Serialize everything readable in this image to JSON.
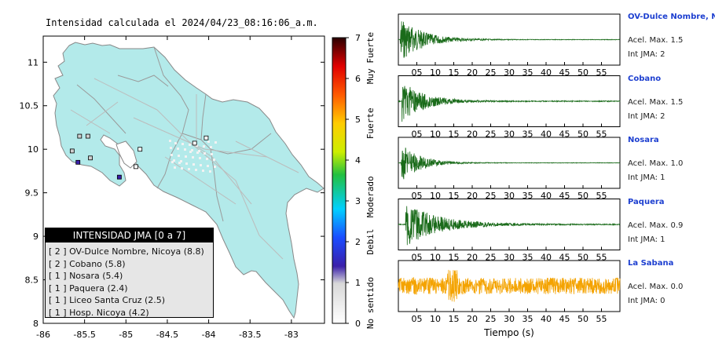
{
  "map": {
    "title": "Intensidad calculada el 2024/04/23_08:16:06_a.m.",
    "x_ticks": [
      "-86",
      "-85.5",
      "-85",
      "-84.5",
      "-84",
      "-83.5",
      "-83"
    ],
    "y_ticks": [
      "11",
      "10.5",
      "10",
      "9.5",
      "9",
      "8.5",
      "8"
    ],
    "land_color": "#b3eaea"
  },
  "colorbar": {
    "ticks": [
      "0",
      "1",
      "2",
      "3",
      "4",
      "5",
      "6",
      "7"
    ],
    "labels": [
      "No sentido",
      "Debil",
      "Moderado",
      "Fuerte",
      "Muy Fuerte"
    ]
  },
  "legend": {
    "title": "INTENSIDAD JMA [0 a 7]",
    "items": [
      {
        "level": "[ 2 ]",
        "name": "OV-Dulce Nombre, Nicoya (8.8)"
      },
      {
        "level": "[ 2 ]",
        "name": "Cobano (5.8)"
      },
      {
        "level": "[ 1 ]",
        "name": "Nosara (5.4)"
      },
      {
        "level": "[ 1 ]",
        "name": "Paquera (2.4)"
      },
      {
        "level": "[ 1 ]",
        "name": "Liceo Santa Cruz (2.5)"
      },
      {
        "level": "[ 1 ]",
        "name": "Hosp. Nicoya (4.2)"
      }
    ]
  },
  "chart_data": {
    "type": "line",
    "xlabel": "Tiempo (s)",
    "x_ticks": [
      "05",
      "10",
      "15",
      "20",
      "25",
      "30",
      "35",
      "40",
      "45",
      "50",
      "55"
    ],
    "xlim": [
      0,
      60
    ],
    "series": [
      {
        "name": "OV-Dulce Nombre, Nicoya",
        "accel": "Acel. Max. 1.5",
        "jma": "Int JMA: 2",
        "color": "#1a6b1a",
        "onset_s": 0.5,
        "peak_rel": 0.95,
        "decay_s": 6,
        "noise_rel": 0.01
      },
      {
        "name": "Cobano",
        "accel": "Acel. Max. 1.5",
        "jma": "Int JMA: 2",
        "color": "#1a6b1a",
        "onset_s": 1.0,
        "peak_rel": 0.85,
        "decay_s": 6,
        "noise_rel": 0.02
      },
      {
        "name": "Nosara",
        "accel": "Acel. Max. 1.0",
        "jma": "Int JMA: 1",
        "color": "#1a6b1a",
        "onset_s": 0.8,
        "peak_rel": 0.8,
        "decay_s": 5,
        "noise_rel": 0.01
      },
      {
        "name": "Paquera",
        "accel": "Acel. Max. 0.9",
        "jma": "Int JMA: 1",
        "color": "#1a6b1a",
        "onset_s": 2.0,
        "peak_rel": 0.9,
        "decay_s": 9,
        "noise_rel": 0.02
      },
      {
        "name": "La Sabana",
        "accel": "Acel. Max. 0.0",
        "jma": "Int JMA: 0",
        "color": "#f4a300",
        "onset_s": 0,
        "peak_rel": 0.45,
        "decay_s": 60,
        "noise_rel": 0.35
      }
    ]
  },
  "stations": [
    {
      "lon": -85.58,
      "lat": 9.85,
      "level": 2
    },
    {
      "lon": -85.08,
      "lat": 9.68,
      "level": 2
    },
    {
      "lon": -85.56,
      "lat": 10.15,
      "level": 1
    },
    {
      "lon": -85.46,
      "lat": 10.15,
      "level": 1
    },
    {
      "lon": -85.65,
      "lat": 9.98,
      "level": 1
    },
    {
      "lon": -85.43,
      "lat": 9.9,
      "level": 1
    },
    {
      "lon": -84.88,
      "lat": 9.8,
      "level": 0
    },
    {
      "lon": -84.83,
      "lat": 10.0,
      "level": 0
    },
    {
      "lon": -84.17,
      "lat": 10.07,
      "level": 0
    },
    {
      "lon": -84.03,
      "lat": 10.13,
      "level": 0
    }
  ]
}
